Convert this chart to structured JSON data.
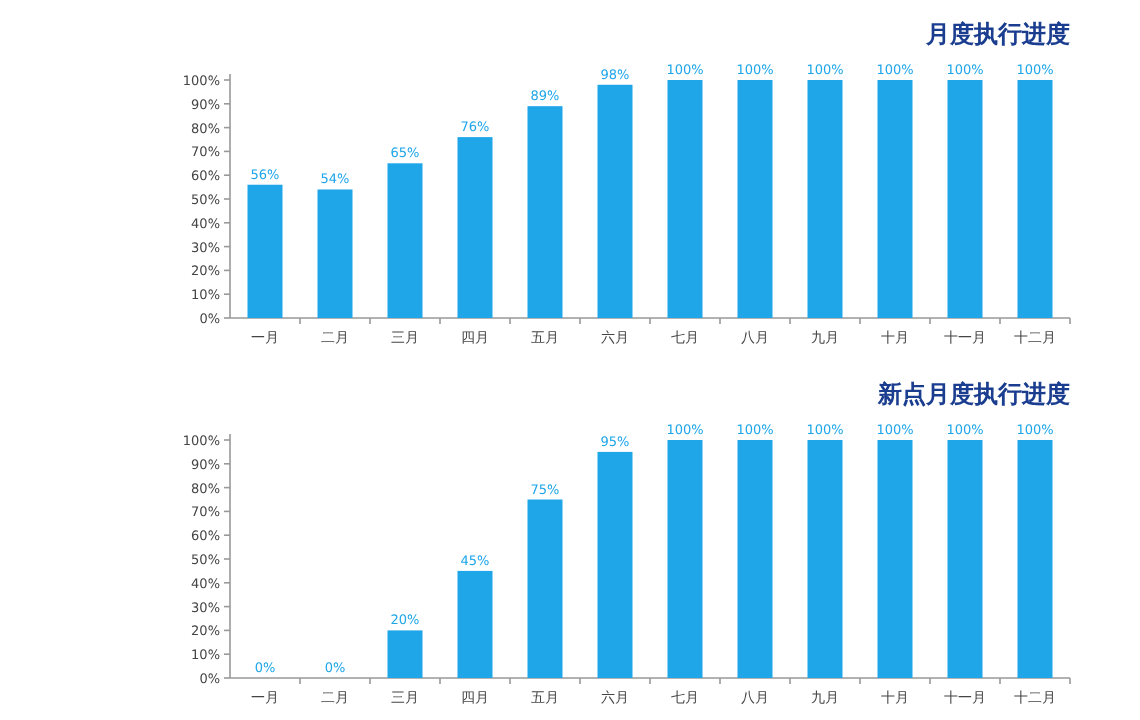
{
  "chart_data": [
    {
      "type": "bar",
      "title": "月度执行进度",
      "categories": [
        "一月",
        "二月",
        "三月",
        "四月",
        "五月",
        "六月",
        "七月",
        "八月",
        "九月",
        "十月",
        "十一月",
        "十二月"
      ],
      "values": [
        56,
        54,
        65,
        76,
        89,
        98,
        100,
        100,
        100,
        100,
        100,
        100
      ],
      "color": "#1ea6e9",
      "value_labels": [
        "56%",
        "54%",
        "65%",
        "76%",
        "89%",
        "98%",
        "100%",
        "100%",
        "100%",
        "100%",
        "100%",
        "100%"
      ],
      "ylim": [
        0,
        100
      ],
      "yticks": [
        {
          "value": 0,
          "label": "0%"
        },
        {
          "value": 10,
          "label": "10%"
        },
        {
          "value": 20,
          "label": "20%"
        },
        {
          "value": 30,
          "label": "30%"
        },
        {
          "value": 40,
          "label": "40%"
        },
        {
          "value": 50,
          "label": "50%"
        },
        {
          "value": 60,
          "label": "60%"
        },
        {
          "value": 70,
          "label": "70%"
        },
        {
          "value": 80,
          "label": "80%"
        },
        {
          "value": 90,
          "label": "90%"
        },
        {
          "value": 100,
          "label": "100%"
        }
      ]
    },
    {
      "type": "bar",
      "title": "新点月度执行进度",
      "categories": [
        "一月",
        "二月",
        "三月",
        "四月",
        "五月",
        "六月",
        "七月",
        "八月",
        "九月",
        "十月",
        "十一月",
        "十二月"
      ],
      "values": [
        0,
        0,
        20,
        45,
        75,
        95,
        100,
        100,
        100,
        100,
        100,
        100
      ],
      "color": "#1ea6e9",
      "value_labels": [
        "0%",
        "0%",
        "20%",
        "45%",
        "75%",
        "95%",
        "100%",
        "100%",
        "100%",
        "100%",
        "100%",
        "100%"
      ],
      "ylim": [
        0,
        100
      ],
      "yticks": [
        {
          "value": 0,
          "label": "0%"
        },
        {
          "value": 10,
          "label": "10%"
        },
        {
          "value": 20,
          "label": "20%"
        },
        {
          "value": 30,
          "label": "30%"
        },
        {
          "value": 40,
          "label": "40%"
        },
        {
          "value": 50,
          "label": "50%"
        },
        {
          "value": 60,
          "label": "60%"
        },
        {
          "value": 70,
          "label": "70%"
        },
        {
          "value": 80,
          "label": "80%"
        },
        {
          "value": 90,
          "label": "90%"
        },
        {
          "value": 100,
          "label": "100%"
        }
      ]
    }
  ]
}
